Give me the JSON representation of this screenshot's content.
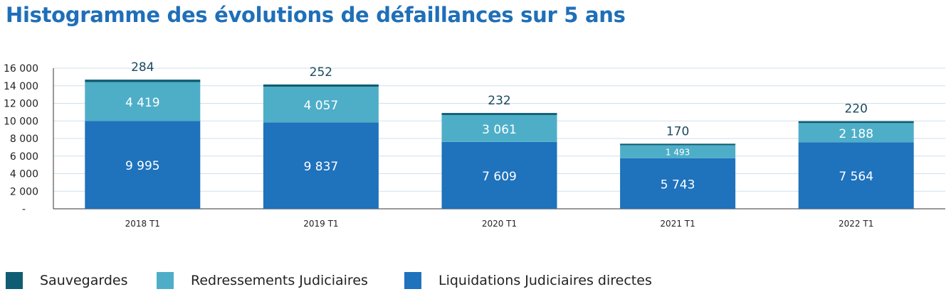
{
  "title": "Histogramme des évolutions de défaillances sur 5 ans",
  "chart_data": {
    "type": "bar",
    "stacked": true,
    "title": "Histogramme des évolutions de défaillances sur 5 ans",
    "categories": [
      "2018 T1",
      "2019 T1",
      "2020 T1",
      "2021 T1",
      "2022 T1"
    ],
    "series": [
      {
        "name": "Liquidations Judiciaires directes",
        "color": "#1f72bc",
        "values": [
          9995,
          9837,
          7609,
          5743,
          7564
        ],
        "labels": [
          "9 995",
          "9 837",
          "7 609",
          "5 743",
          "7 564"
        ]
      },
      {
        "name": "Redressements Judiciaires",
        "color": "#4eaec8",
        "values": [
          4419,
          4057,
          3061,
          1493,
          2188
        ],
        "labels": [
          "4 419",
          "4 057",
          "3 061",
          "1 493",
          "2 188"
        ]
      },
      {
        "name": "Sauvegardes",
        "color": "#0f5d73",
        "values": [
          284,
          252,
          232,
          170,
          220
        ],
        "labels": [
          "284",
          "252",
          "232",
          "170",
          "220"
        ]
      }
    ],
    "ylim": [
      0,
      16000
    ],
    "yticks": [
      0,
      2000,
      4000,
      6000,
      8000,
      10000,
      12000,
      14000,
      16000
    ],
    "ytick_labels": [
      "-",
      "2 000",
      "4 000",
      "6 000",
      "8 000",
      "10 000",
      "12 000",
      "14 000",
      "16 000"
    ],
    "grid": true,
    "legend_position": "bottom"
  }
}
